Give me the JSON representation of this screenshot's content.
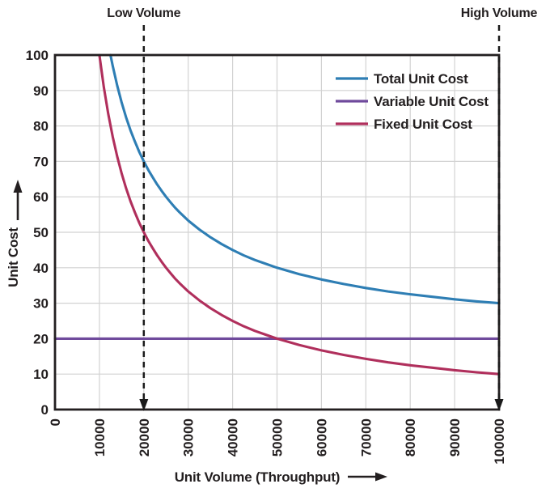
{
  "chart_data": {
    "type": "line",
    "title": "",
    "xlabel": "Unit Volume (Throughput)",
    "ylabel": "Unit Cost",
    "xlim": [
      0,
      100000
    ],
    "ylim": [
      0,
      100
    ],
    "xticks": [
      0,
      10000,
      20000,
      30000,
      40000,
      50000,
      60000,
      70000,
      80000,
      90000,
      100000
    ],
    "yticks": [
      0,
      10,
      20,
      30,
      40,
      50,
      60,
      70,
      80,
      90,
      100
    ],
    "grid": true,
    "legend_position": "top-right",
    "annotations": [
      {
        "label": "Low Volume",
        "x": 20000
      },
      {
        "label": "High Volume",
        "x": 100000
      }
    ],
    "series": [
      {
        "name": "Total Unit Cost",
        "color": "#2e7eb4",
        "points": [
          [
            12500,
            100
          ],
          [
            13000,
            96.9
          ],
          [
            14000,
            91.4
          ],
          [
            15000,
            86.7
          ],
          [
            16000,
            82.5
          ],
          [
            17000,
            78.8
          ],
          [
            18000,
            75.6
          ],
          [
            19000,
            72.6
          ],
          [
            20000,
            70
          ],
          [
            21000,
            67.6
          ],
          [
            22000,
            65.5
          ],
          [
            23000,
            63.5
          ],
          [
            24000,
            61.7
          ],
          [
            25000,
            60
          ],
          [
            26000,
            58.5
          ],
          [
            27000,
            57
          ],
          [
            28000,
            55.7
          ],
          [
            29000,
            54.5
          ],
          [
            30000,
            53.3
          ],
          [
            32500,
            50.8
          ],
          [
            35000,
            48.6
          ],
          [
            37500,
            46.7
          ],
          [
            40000,
            45
          ],
          [
            42500,
            43.5
          ],
          [
            45000,
            42.2
          ],
          [
            47500,
            41.1
          ],
          [
            50000,
            40
          ],
          [
            55000,
            38.2
          ],
          [
            60000,
            36.7
          ],
          [
            65000,
            35.4
          ],
          [
            70000,
            34.3
          ],
          [
            75000,
            33.3
          ],
          [
            80000,
            32.5
          ],
          [
            85000,
            31.8
          ],
          [
            90000,
            31.1
          ],
          [
            95000,
            30.5
          ],
          [
            100000,
            30
          ]
        ]
      },
      {
        "name": "Variable Unit Cost",
        "color": "#6f4a9c",
        "points": [
          [
            0,
            20
          ],
          [
            100000,
            20
          ]
        ]
      },
      {
        "name": "Fixed Unit Cost",
        "color": "#b02f5c",
        "points": [
          [
            10000,
            100
          ],
          [
            11000,
            90.9
          ],
          [
            12000,
            83.3
          ],
          [
            13000,
            76.9
          ],
          [
            14000,
            71.4
          ],
          [
            15000,
            66.7
          ],
          [
            16000,
            62.5
          ],
          [
            17000,
            58.8
          ],
          [
            18000,
            55.6
          ],
          [
            19000,
            52.6
          ],
          [
            20000,
            50
          ],
          [
            21000,
            47.6
          ],
          [
            22000,
            45.5
          ],
          [
            23000,
            43.5
          ],
          [
            24000,
            41.7
          ],
          [
            25000,
            40
          ],
          [
            26000,
            38.5
          ],
          [
            27000,
            37
          ],
          [
            28000,
            35.7
          ],
          [
            29000,
            34.5
          ],
          [
            30000,
            33.3
          ],
          [
            32500,
            30.8
          ],
          [
            35000,
            28.6
          ],
          [
            37500,
            26.7
          ],
          [
            40000,
            25
          ],
          [
            42500,
            23.5
          ],
          [
            45000,
            22.2
          ],
          [
            47500,
            21.1
          ],
          [
            50000,
            20
          ],
          [
            55000,
            18.2
          ],
          [
            60000,
            16.7
          ],
          [
            65000,
            15.4
          ],
          [
            70000,
            14.3
          ],
          [
            75000,
            13.3
          ],
          [
            80000,
            12.5
          ],
          [
            85000,
            11.8
          ],
          [
            90000,
            11.1
          ],
          [
            95000,
            10.5
          ],
          [
            100000,
            10
          ]
        ]
      }
    ]
  },
  "colors": {
    "text": "#231f20",
    "axis": "#231f20",
    "grid": "#d2d2d2",
    "annotation": "#1a1a1a",
    "background": "#ffffff"
  }
}
